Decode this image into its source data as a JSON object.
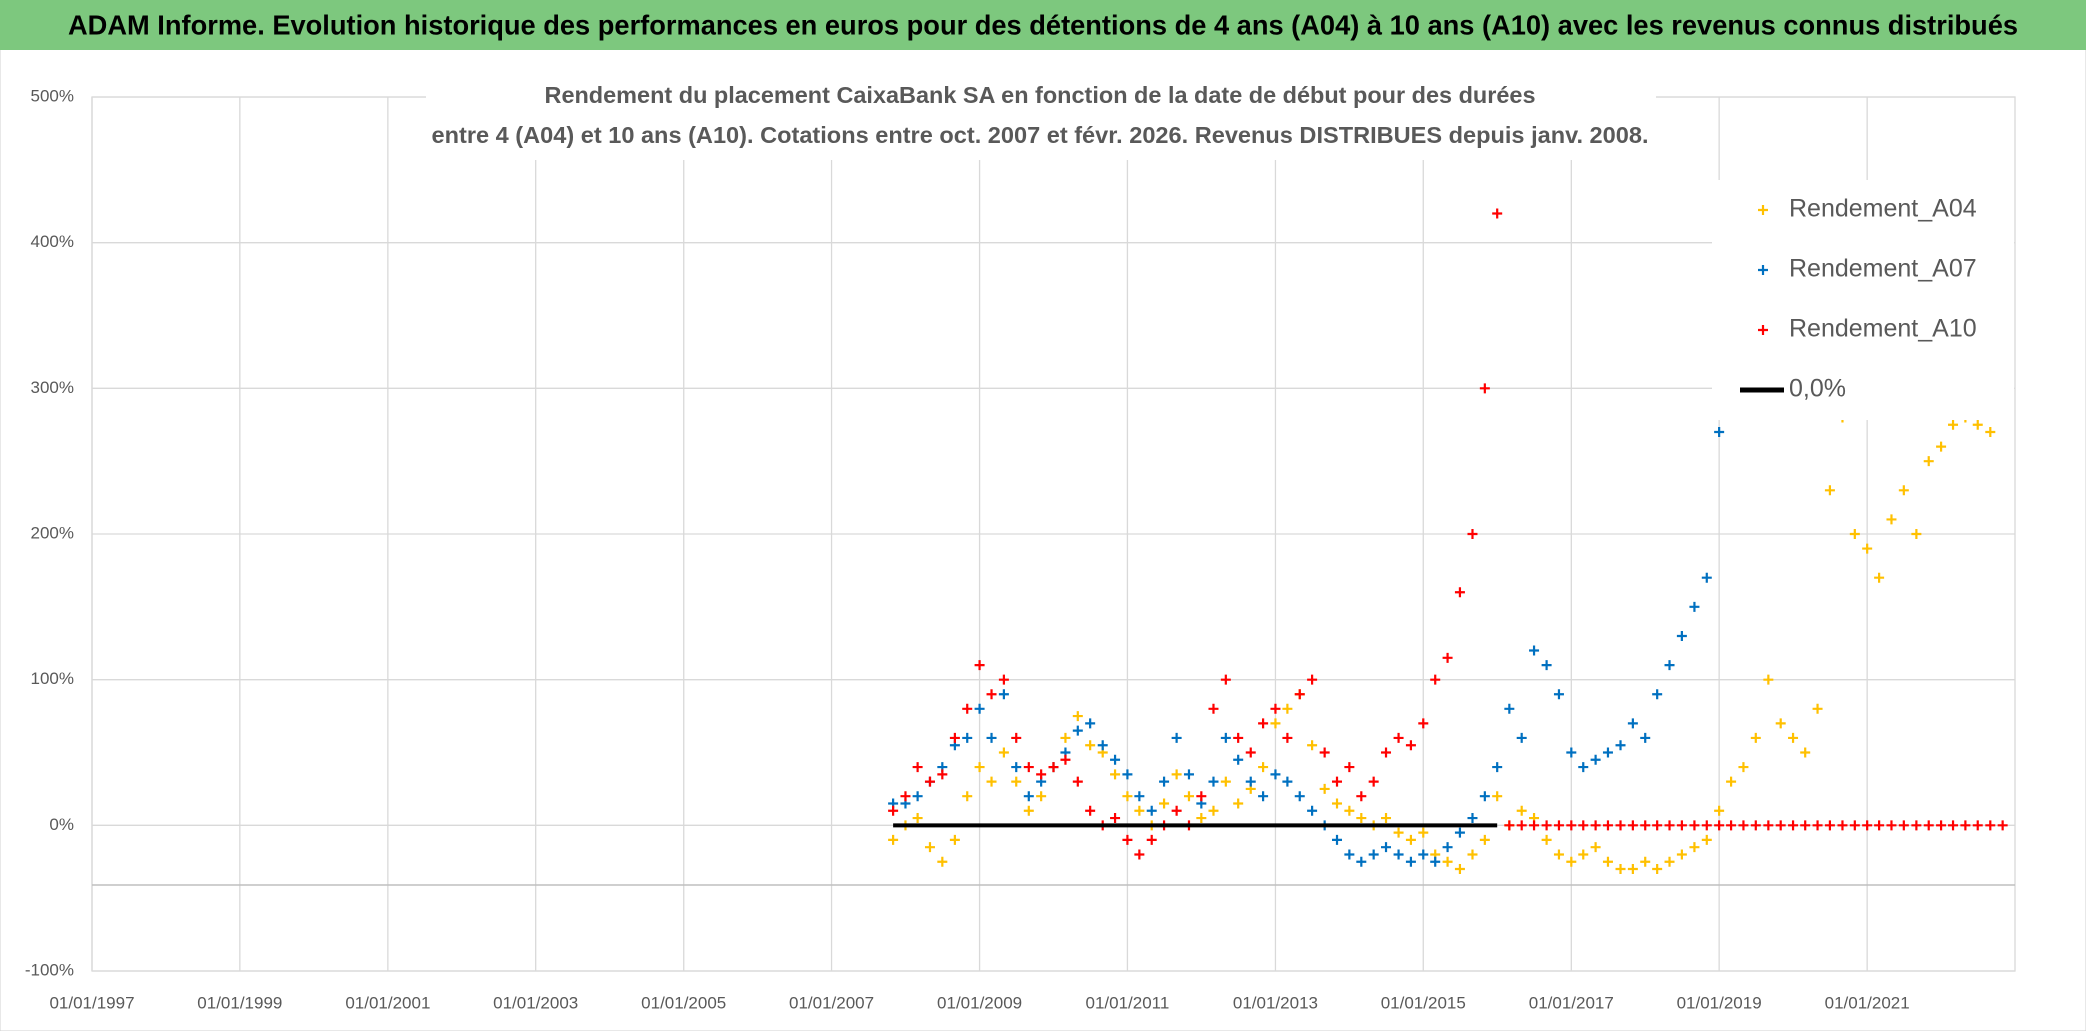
{
  "chart_data": {
    "type": "scatter",
    "title": "ADAM Informe. Evolution historique des performances en euros pour des détentions de 4 ans (A04) à 10 ans (A10) avec les revenus connus distribués",
    "subtitle": [
      "Rendement du placement CaixaBank SA en fonction de la date de début pour des durées",
      "entre 4 (A04) et 10 ans (A10). Cotations entre oct. 2007 et févr. 2026. Revenus DISTRIBUES depuis janv. 2008."
    ],
    "x": [
      "2007-11-01",
      "2008-01-01",
      "2008-03-01",
      "2008-05-01",
      "2008-07-01",
      "2008-09-01",
      "2008-11-01",
      "2009-01-01",
      "2009-03-01",
      "2009-05-01",
      "2009-07-01",
      "2009-09-01",
      "2009-11-01",
      "2010-01-01",
      "2010-03-01",
      "2010-05-01",
      "2010-07-01",
      "2010-09-01",
      "2010-11-01",
      "2011-01-01",
      "2011-03-01",
      "2011-05-01",
      "2011-07-01",
      "2011-09-01",
      "2011-11-01",
      "2012-01-01",
      "2012-03-01",
      "2012-05-01",
      "2012-07-01",
      "2012-09-01",
      "2012-11-01",
      "2013-01-01",
      "2013-03-01",
      "2013-05-01",
      "2013-07-01",
      "2013-09-01",
      "2013-11-01",
      "2014-01-01",
      "2014-03-01",
      "2014-05-01",
      "2014-07-01",
      "2014-09-01",
      "2014-11-01",
      "2015-01-01",
      "2015-03-01",
      "2015-05-01",
      "2015-07-01",
      "2015-09-01",
      "2015-11-01",
      "2016-01-01",
      "2016-03-01",
      "2016-05-01",
      "2016-07-01",
      "2016-09-01",
      "2016-11-01",
      "2017-01-01",
      "2017-03-01",
      "2017-05-01",
      "2017-07-01",
      "2017-09-01",
      "2017-11-01",
      "2018-01-01",
      "2018-03-01",
      "2018-05-01",
      "2018-07-01",
      "2018-09-01",
      "2018-11-01",
      "2019-01-01",
      "2019-03-01",
      "2019-05-01",
      "2019-07-01",
      "2019-09-01",
      "2019-11-01",
      "2020-01-01",
      "2020-03-01",
      "2020-05-01",
      "2020-07-01",
      "2020-09-01",
      "2020-11-01",
      "2021-01-01",
      "2021-03-01",
      "2021-05-01",
      "2021-07-01",
      "2021-09-01",
      "2021-11-01",
      "2022-01-01",
      "2022-03-01",
      "2022-05-01",
      "2022-07-01",
      "2022-09-01",
      "2022-11-01"
    ],
    "series": [
      {
        "name": "Rendement_A04",
        "color": "#FFC000",
        "values": [
          -10,
          0,
          5,
          -15,
          -25,
          -10,
          20,
          40,
          30,
          50,
          30,
          10,
          20,
          40,
          60,
          75,
          55,
          50,
          35,
          20,
          10,
          0,
          15,
          35,
          20,
          5,
          10,
          30,
          15,
          25,
          40,
          70,
          80,
          90,
          55,
          25,
          15,
          10,
          5,
          0,
          5,
          -5,
          -10,
          -5,
          -20,
          -25,
          -30,
          -20,
          -10,
          20,
          0,
          10,
          5,
          -10,
          -20,
          -25,
          -20,
          -15,
          -25,
          -30,
          -30,
          -25,
          -30,
          -25,
          -20,
          -15,
          -10,
          10,
          30,
          40,
          60,
          100,
          70,
          60,
          50,
          80,
          230,
          280,
          200,
          190,
          170,
          210,
          230,
          200,
          250,
          260,
          275,
          280,
          275,
          270,
          null
        ]
      },
      {
        "name": "Rendement_A07",
        "color": "#0070C0",
        "values": [
          15,
          15,
          20,
          30,
          40,
          55,
          60,
          80,
          60,
          90,
          40,
          20,
          30,
          40,
          50,
          65,
          70,
          55,
          45,
          35,
          20,
          10,
          30,
          60,
          35,
          15,
          30,
          60,
          45,
          30,
          20,
          35,
          30,
          20,
          10,
          0,
          -10,
          -20,
          -25,
          -20,
          -15,
          -20,
          -25,
          -20,
          -25,
          -15,
          -5,
          5,
          20,
          40,
          80,
          60,
          120,
          110,
          90,
          50,
          40,
          45,
          50,
          55,
          70,
          60,
          90,
          110,
          130,
          150,
          170,
          270,
          null,
          null,
          null,
          null,
          null,
          null,
          null,
          null,
          null,
          null,
          null,
          null,
          null,
          null,
          null,
          null,
          null,
          null,
          null,
          null,
          null,
          null,
          null
        ]
      },
      {
        "name": "Rendement_A10",
        "color": "#FF0000",
        "values": [
          10,
          20,
          40,
          30,
          35,
          60,
          80,
          110,
          90,
          100,
          60,
          40,
          35,
          40,
          45,
          30,
          10,
          0,
          5,
          -10,
          -20,
          -10,
          0,
          10,
          0,
          20,
          80,
          100,
          60,
          50,
          70,
          80,
          60,
          90,
          100,
          50,
          30,
          40,
          20,
          30,
          50,
          60,
          55,
          70,
          100,
          115,
          160,
          200,
          300,
          420,
          0,
          0,
          0,
          0,
          0,
          0,
          0,
          0,
          0,
          0,
          0,
          0,
          0,
          0,
          0,
          0,
          0,
          0,
          0,
          0,
          0,
          0,
          0,
          0,
          0,
          0,
          0,
          0,
          0,
          0,
          0,
          0,
          0,
          0,
          0,
          0,
          0,
          0,
          0,
          0,
          0
        ]
      },
      {
        "name": "0,0%",
        "color": "#000000",
        "mode": "line",
        "values": [
          0,
          0,
          0,
          0,
          0,
          0,
          0,
          0,
          0,
          0,
          0,
          0,
          0,
          0,
          0,
          0,
          0,
          0,
          0,
          0,
          0,
          0,
          0,
          0,
          0,
          0,
          0,
          0,
          0,
          0,
          0,
          0,
          0,
          0,
          0,
          0,
          0,
          0,
          0,
          0,
          0,
          0,
          0,
          0,
          0,
          0,
          0,
          0,
          0,
          0,
          null,
          null,
          null,
          null,
          null,
          null,
          null,
          null,
          null,
          null,
          null,
          null,
          null,
          null,
          null,
          null,
          null,
          null,
          null,
          null,
          null,
          null,
          null,
          null,
          null,
          null,
          null,
          null,
          null,
          null,
          null,
          null,
          null,
          null,
          null,
          null,
          null,
          null,
          null,
          null,
          null
        ]
      }
    ],
    "xlim": [
      "1997-01-01",
      "2023-01-01"
    ],
    "xticks": [
      {
        "value": "1997-01-01",
        "label": "01/01/1997"
      },
      {
        "value": "1999-01-01",
        "label": "01/01/1999"
      },
      {
        "value": "2001-01-01",
        "label": "01/01/2001"
      },
      {
        "value": "2003-01-01",
        "label": "01/01/2003"
      },
      {
        "value": "2005-01-01",
        "label": "01/01/2005"
      },
      {
        "value": "2007-01-01",
        "label": "01/01/2007"
      },
      {
        "value": "2009-01-01",
        "label": "01/01/2009"
      },
      {
        "value": "2011-01-01",
        "label": "01/01/2011"
      },
      {
        "value": "2013-01-01",
        "label": "01/01/2013"
      },
      {
        "value": "2015-01-01",
        "label": "01/01/2015"
      },
      {
        "value": "2017-01-01",
        "label": "01/01/2017"
      },
      {
        "value": "2019-01-01",
        "label": "01/01/2019"
      },
      {
        "value": "2021-01-01",
        "label": "01/01/2021"
      }
    ],
    "ylim": [
      -100,
      500
    ],
    "yticks": [
      {
        "value": -100,
        "label": "-100%"
      },
      {
        "value": 0,
        "label": "0%"
      },
      {
        "value": 100,
        "label": "100%"
      },
      {
        "value": 200,
        "label": "200%"
      },
      {
        "value": 300,
        "label": "300%"
      },
      {
        "value": 400,
        "label": "400%"
      },
      {
        "value": 500,
        "label": "500%"
      }
    ],
    "grid": true,
    "legend": "upper right"
  }
}
